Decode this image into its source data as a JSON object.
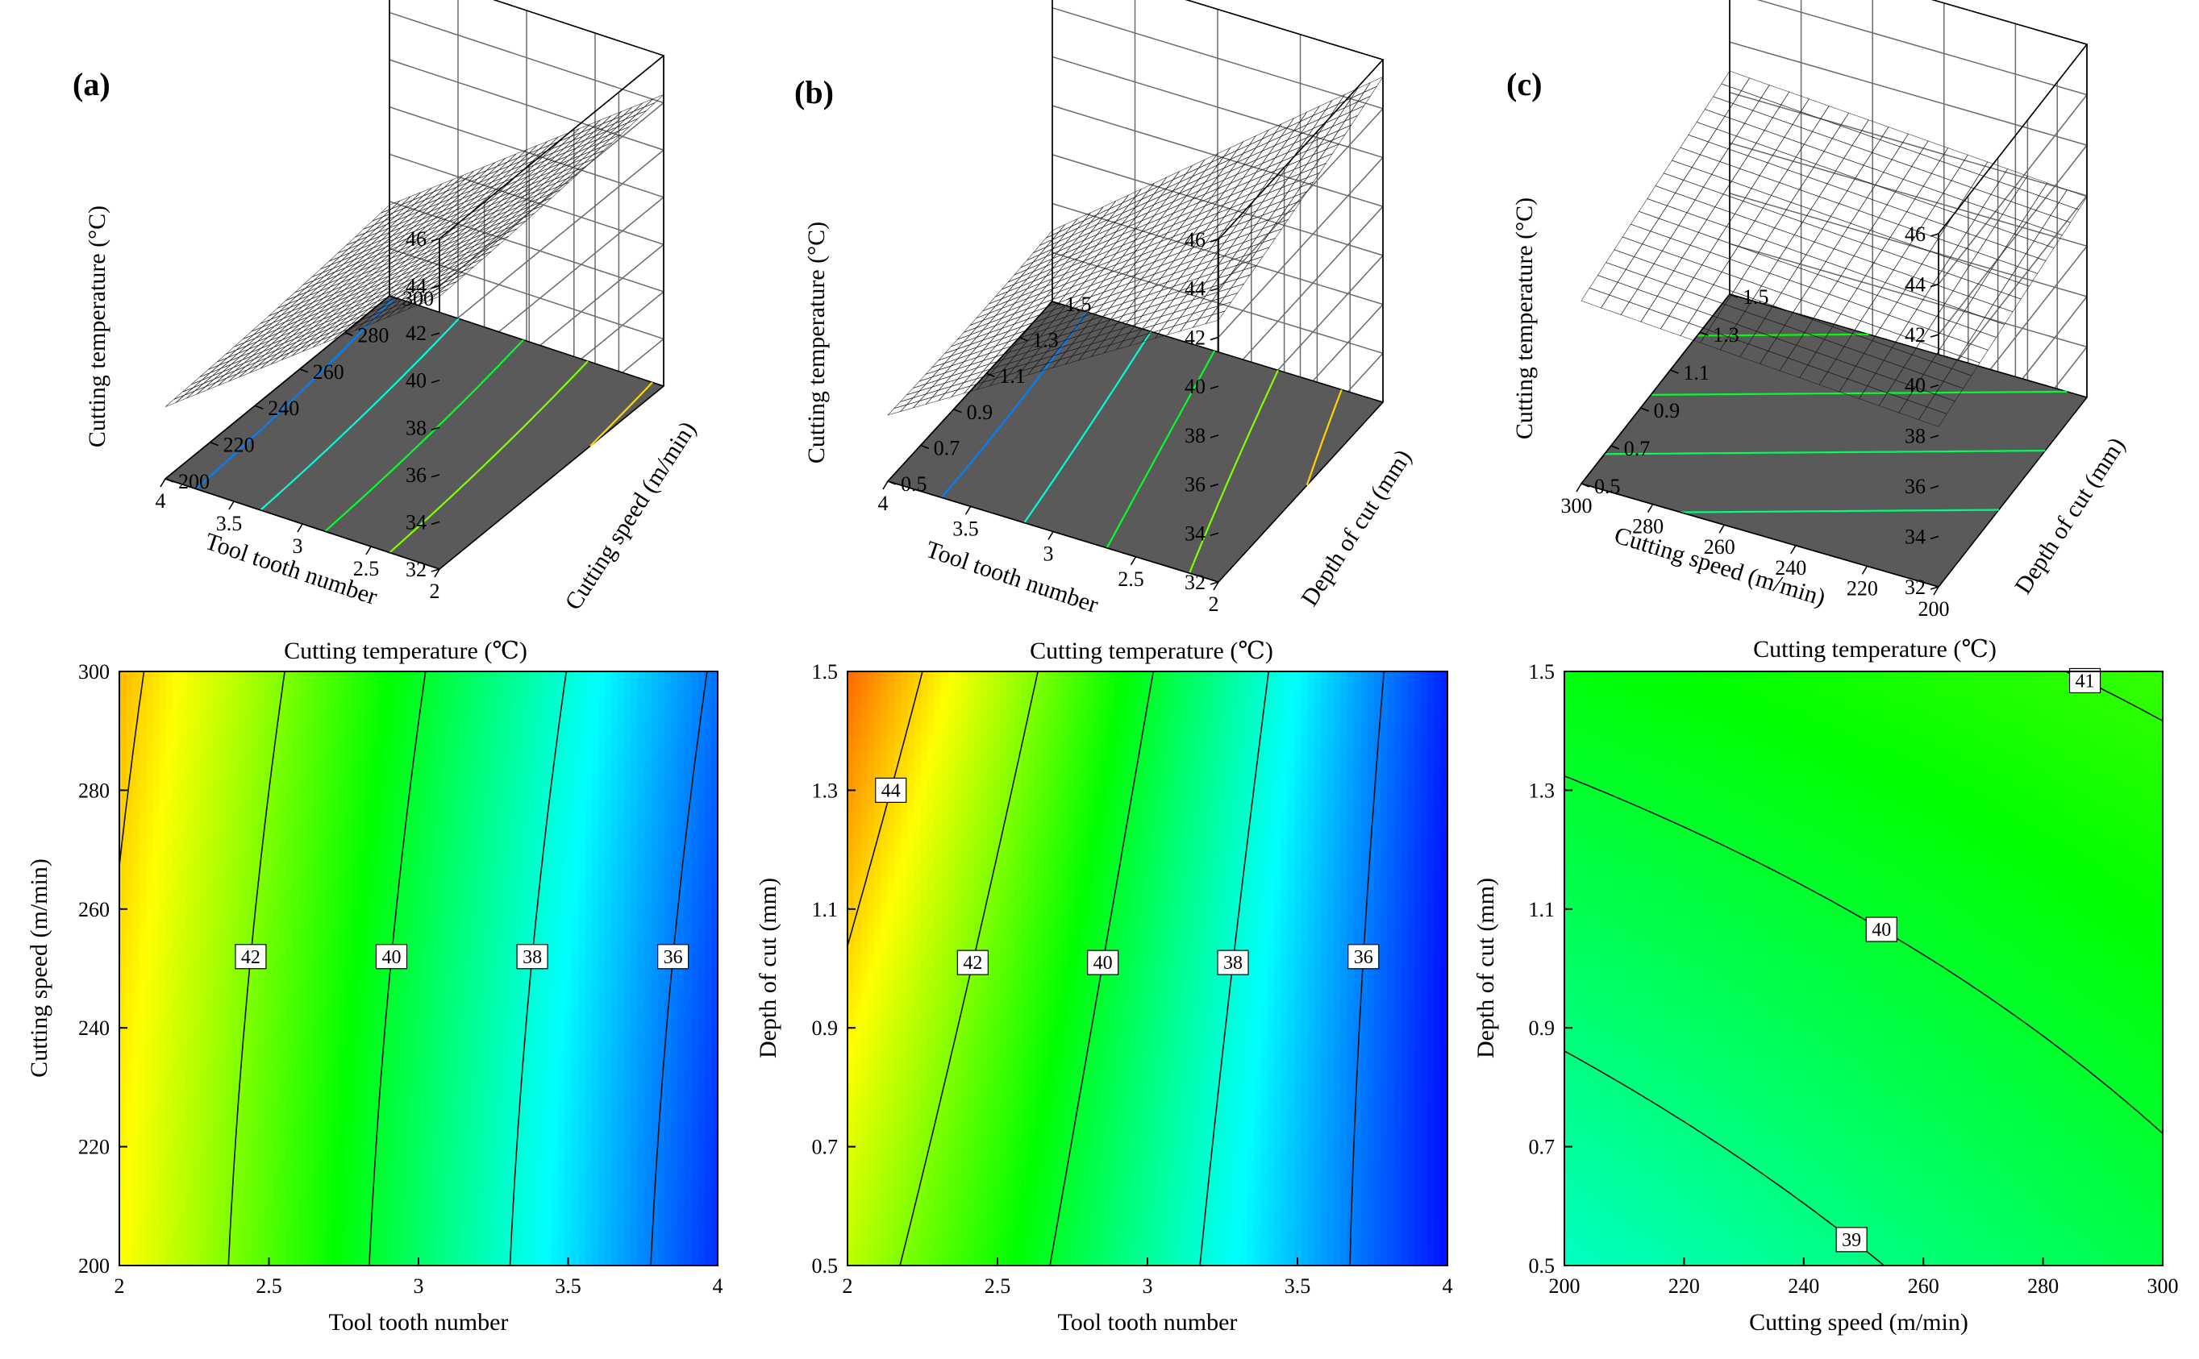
{
  "colors": {
    "colormap": [
      "#0000ff",
      "#00ffff",
      "#00ff00",
      "#ffff00",
      "#ff0000"
    ],
    "floor": "#5a5a5a"
  },
  "color_range": [
    34.5,
    46.5
  ],
  "chart_data": [
    {
      "id": "a",
      "panel_label": "(a)",
      "type": "surface",
      "zlabel": "Cutting temperature (°C)",
      "xlabel": "Tool tooth number",
      "ylabel": "Cutting speed (m/min)",
      "xlim": [
        2,
        4
      ],
      "ylim": [
        200,
        300
      ],
      "zlim": [
        32,
        46
      ],
      "xticks": [
        "2",
        "2.5",
        "3",
        "3.5",
        "4"
      ],
      "yticks": [
        "200",
        "220",
        "240",
        "260",
        "280",
        "300"
      ],
      "zticks": [
        "32",
        "34",
        "36",
        "38",
        "40",
        "42",
        "44",
        "46"
      ],
      "model": {
        "c": 39.6,
        "bx": -4.25,
        "by": 0.4,
        "bxy": 0.0,
        "bxx": 0.0,
        "byy": 0.1
      },
      "grid": 26,
      "floor_levels": [
        36,
        38,
        40,
        42,
        44
      ]
    },
    {
      "id": "b",
      "panel_label": "(b)",
      "type": "surface",
      "zlabel": "Cutting temperature (°C)",
      "xlabel": "Tool tooth number",
      "ylabel": "Depth of cut (mm)",
      "xlim": [
        2,
        4
      ],
      "ylim": [
        0.5,
        1.5
      ],
      "zlim": [
        32,
        46
      ],
      "xticks": [
        "2",
        "2.5",
        "3",
        "3.5",
        "4"
      ],
      "yticks": [
        "0.5",
        "0.7",
        "0.9",
        "1.1",
        "1.3",
        "1.5"
      ],
      "zticks": [
        "32",
        "34",
        "36",
        "38",
        "40",
        "42",
        "44",
        "46"
      ],
      "model": {
        "c": 39.3,
        "bx": -4.6,
        "by": 0.7,
        "bxy": -0.6,
        "bxx": 0.0,
        "byy": 0.1
      },
      "grid": 26,
      "floor_levels": [
        36,
        38,
        40,
        42,
        44
      ]
    },
    {
      "id": "c",
      "panel_label": "(c)",
      "type": "surface",
      "zlabel": "Cutting temperature (°C)",
      "xlabel": "Cutting speed (m/min)",
      "ylabel": "Depth of cut (mm)",
      "xlim": [
        200,
        300
      ],
      "ylim": [
        0.5,
        1.5
      ],
      "zlim": [
        32,
        46
      ],
      "xticks": [
        "200",
        "220",
        "240",
        "260",
        "280",
        "300"
      ],
      "yticks": [
        "0.5",
        "0.7",
        "0.9",
        "1.1",
        "1.3",
        "1.5"
      ],
      "zticks": [
        "32",
        "34",
        "36",
        "38",
        "40",
        "42",
        "44",
        "46"
      ],
      "model": {
        "c": 39.6,
        "bx": 0.45,
        "by": 0.8,
        "bxy": 0.0,
        "bxx": 0.0,
        "byy": 0.0
      },
      "grid": 18,
      "floor_levels": [
        39,
        39.5,
        40,
        40.5,
        41
      ]
    },
    {
      "id": "d",
      "type": "contour",
      "title": "Cutting temperature (℃)",
      "xlabel": "Tool tooth number",
      "ylabel": "Cutting speed (m/min)",
      "xlim": [
        2,
        4
      ],
      "ylim": [
        200,
        300
      ],
      "xticks": [
        "2",
        "2.5",
        "3",
        "3.5",
        "4"
      ],
      "yticks": [
        "200",
        "220",
        "240",
        "260",
        "280",
        "300"
      ],
      "model": {
        "c": 39.6,
        "bx": -4.25,
        "by": 0.4,
        "bxy": 0.0,
        "bxx": 0.0,
        "byy": 0.1
      },
      "levels": [
        36,
        38,
        40,
        42,
        44
      ],
      "labeled_levels": [
        {
          "level": 42,
          "text": "42",
          "y": 252
        },
        {
          "level": 40,
          "text": "40",
          "y": 252
        },
        {
          "level": 38,
          "text": "38",
          "y": 252
        },
        {
          "level": 36,
          "text": "36",
          "y": 252
        }
      ]
    },
    {
      "id": "e",
      "type": "contour",
      "title": "Cutting temperature (℃)",
      "xlabel": "Tool tooth number",
      "ylabel": "Depth of cut (mm)",
      "xlim": [
        2,
        4
      ],
      "ylim": [
        0.5,
        1.5
      ],
      "xticks": [
        "2",
        "2.5",
        "3",
        "3.5",
        "4"
      ],
      "yticks": [
        "0.5",
        "0.7",
        "0.9",
        "1.1",
        "1.3",
        "1.5"
      ],
      "model": {
        "c": 39.3,
        "bx": -4.6,
        "by": 0.7,
        "bxy": -0.6,
        "bxx": 0.0,
        "byy": 0.1
      },
      "levels": [
        36,
        38,
        40,
        42,
        44
      ],
      "labeled_levels": [
        {
          "level": 44,
          "text": "44",
          "y": 1.3
        },
        {
          "level": 42,
          "text": "42",
          "y": 1.01
        },
        {
          "level": 40,
          "text": "40",
          "y": 1.01
        },
        {
          "level": 38,
          "text": "38",
          "y": 1.01
        },
        {
          "level": 36,
          "text": "36",
          "y": 1.02
        }
      ]
    },
    {
      "id": "f",
      "type": "contour",
      "title": "Cutting temperature (℃)",
      "xlabel": "Cutting speed (m/min)",
      "ylabel": "Depth of cut (mm)",
      "xlim": [
        200,
        300
      ],
      "ylim": [
        0.5,
        1.5
      ],
      "xticks": [
        "200",
        "220",
        "240",
        "260",
        "280",
        "300"
      ],
      "yticks": [
        "0.5",
        "0.7",
        "0.9",
        "1.1",
        "1.3",
        "1.5"
      ],
      "model": {
        "c": 39.85,
        "bx": 0.55,
        "by": 0.9,
        "bxy": -0.18,
        "bxx": 0.0,
        "byy": 0.0
      },
      "levels": [
        39,
        40,
        41
      ],
      "labeled_levels": [
        {
          "level": 41,
          "text": "41",
          "x": 287
        },
        {
          "level": 40,
          "text": "40",
          "x": 253
        },
        {
          "level": 39,
          "text": "39",
          "x": 248
        }
      ]
    }
  ]
}
